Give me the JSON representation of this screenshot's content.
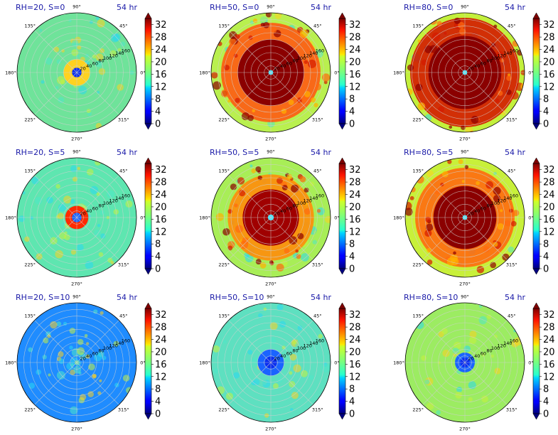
{
  "chart_data": {
    "type": "polar-contour",
    "rows": 3,
    "cols": 3,
    "time_label": "54 hr",
    "angular_ticks": [
      "0°",
      "45°",
      "90°",
      "135°",
      "180°",
      "225°",
      "270°",
      "315°"
    ],
    "radial_ticks": [
      "20",
      "40",
      "60",
      "80",
      "100",
      "120",
      "140",
      "160"
    ],
    "radial_max": 180,
    "colorbar": {
      "colormap": "jet",
      "range": [
        0,
        34
      ],
      "ticks": [
        "0",
        "4",
        "8",
        "12",
        "16",
        "20",
        "24",
        "28",
        "32"
      ],
      "extend": "both"
    },
    "panels": [
      {
        "title": "RH=20, S=0",
        "time": "54 hr",
        "background": "#6fe39a",
        "core_radius": 8,
        "core_color": "#0a2ef0",
        "eyewall_color": "#ffd21f",
        "eyewall_outer": 40,
        "outer_fill": null,
        "outer_fill_radius": 0
      },
      {
        "title": "RH=50, S=0",
        "time": "54 hr",
        "background": "#b9f04f",
        "core_radius": 4,
        "core_color": "#37e6ff",
        "eyewall_color": "#8b0000",
        "eyewall_outer": 100,
        "outer_fill": "#ff5a12",
        "outer_fill_radius": 150
      },
      {
        "title": "RH=80, S=0",
        "time": "54 hr",
        "background": "#c3f03c",
        "core_radius": 4,
        "core_color": "#37e6ff",
        "eyewall_color": "#8b0000",
        "eyewall_outer": 110,
        "outer_fill": "#d41a00",
        "outer_fill_radius": 165
      },
      {
        "title": "RH=20, S=5",
        "time": "54 hr",
        "background": "#5ee6b0",
        "core_radius": 8,
        "core_color": "#1a64ff",
        "eyewall_color": "#ff2a00",
        "eyewall_outer": 35,
        "outer_fill": null,
        "outer_fill_radius": 0
      },
      {
        "title": "RH=50, S=5",
        "time": "54 hr",
        "background": "#a8ee57",
        "core_radius": 5,
        "core_color": "#37e6ff",
        "eyewall_color": "#a00000",
        "eyewall_outer": 85,
        "outer_fill": "#ff8c0a",
        "outer_fill_radius": 130
      },
      {
        "title": "RH=80, S=5",
        "time": "54 hr",
        "background": "#c8f03a",
        "core_radius": 4,
        "core_color": "#37e6ff",
        "eyewall_color": "#8b0000",
        "eyewall_outer": 95,
        "outer_fill": "#ff6a10",
        "outer_fill_radius": 150
      },
      {
        "title": "RH=20, S=10",
        "time": "54 hr",
        "background": "#1f8cff",
        "core_radius": 0,
        "core_color": "#0a50ff",
        "eyewall_color": "#1478ff",
        "eyewall_outer": 0,
        "outer_fill": null,
        "outer_fill_radius": 0
      },
      {
        "title": "RH=50, S=10",
        "time": "54 hr",
        "background": "#5ee0c0",
        "core_radius": 10,
        "core_color": "#0a2ef0",
        "eyewall_color": "#1a64ff",
        "eyewall_outer": 40,
        "outer_fill": null,
        "outer_fill_radius": 0
      },
      {
        "title": "RH=80, S=10",
        "time": "54 hr",
        "background": "#9cec62",
        "core_radius": 8,
        "core_color": "#0a2ef0",
        "eyewall_color": "#1a64ff",
        "eyewall_outer": 30,
        "outer_fill": null,
        "outer_fill_radius": 0
      }
    ]
  }
}
